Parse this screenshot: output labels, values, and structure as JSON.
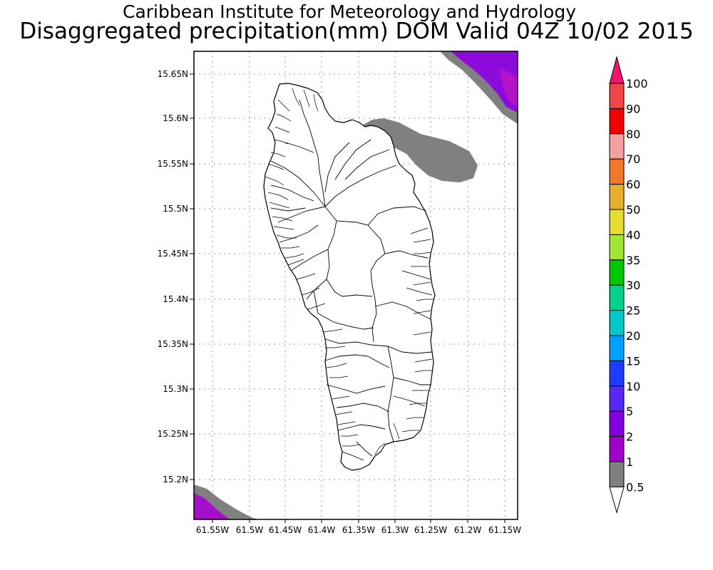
{
  "title": {
    "line1": "Caribbean Institute for Meteorology and Hydrology",
    "line2": "Disaggregated precipitation(mm) DOM Valid 04Z 10/02 2015"
  },
  "map": {
    "lon_range": [
      -61.576,
      -61.14
    ],
    "lat_range": [
      15.155,
      15.675
    ],
    "lon_ticks": [
      "61.55W",
      "61.5W",
      "61.45W",
      "61.4W",
      "61.35W",
      "61.3W",
      "61.25W",
      "61.2W",
      "61.15W"
    ],
    "lat_ticks": [
      "15.65N",
      "15.6N",
      "15.55N",
      "15.5N",
      "15.45N",
      "15.4N",
      "15.35N",
      "15.3N",
      "15.25N",
      "15.2N"
    ],
    "grid": true,
    "land_fill": "#ffffff",
    "outline_color": "#000000"
  },
  "colorbar": {
    "labels": [
      "100",
      "90",
      "80",
      "70",
      "60",
      "50",
      "40",
      "35",
      "30",
      "25",
      "20",
      "15",
      "10",
      "5",
      "2",
      "1",
      "0.5"
    ],
    "colors": [
      "#f0146e",
      "#f04646",
      "#f00000",
      "#f5a0a0",
      "#f07828",
      "#e6af2d",
      "#e6dc32",
      "#a0e632",
      "#00c800",
      "#00d28c",
      "#00c8c8",
      "#00a0ff",
      "#1e3cff",
      "#5a28f5",
      "#8200dc",
      "#a000c8",
      "#808080"
    ]
  }
}
